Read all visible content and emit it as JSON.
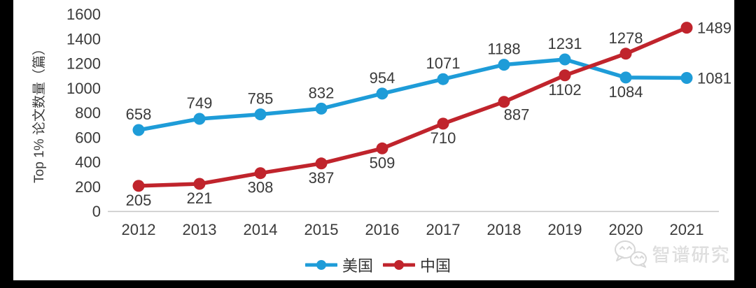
{
  "chart_data": {
    "type": "line",
    "title": "",
    "ylabel": "Top 1% 论文数量（篇）",
    "xlabel": "",
    "categories": [
      "2012",
      "2013",
      "2014",
      "2015",
      "2016",
      "2017",
      "2018",
      "2019",
      "2020",
      "2021"
    ],
    "y_ticks": [
      0,
      200,
      400,
      600,
      800,
      1000,
      1200,
      1400,
      1600
    ],
    "ylim": [
      0,
      1600
    ],
    "grid": false,
    "legend_position": "bottom-center",
    "axis_color": "#c6c6c6",
    "text_color": "#3a3a3a",
    "series": [
      {
        "name": "美国",
        "color": "#1e9cd8",
        "values": [
          658,
          749,
          785,
          832,
          954,
          1071,
          1188,
          1231,
          1084,
          1081
        ],
        "label_positions": [
          "above",
          "above",
          "above",
          "above",
          "above",
          "above",
          "above",
          "above",
          "below",
          "right"
        ]
      },
      {
        "name": "中国",
        "color": "#c0242c",
        "values": [
          205,
          221,
          308,
          387,
          509,
          710,
          887,
          1102,
          1278,
          1489
        ],
        "label_positions": [
          "below",
          "below",
          "below",
          "below",
          "below",
          "below",
          "below-right",
          "below",
          "above",
          "right"
        ]
      }
    ]
  },
  "watermark": {
    "text": "智谱研究",
    "icon": "wechat-icon",
    "color": "#e0e0e0"
  }
}
